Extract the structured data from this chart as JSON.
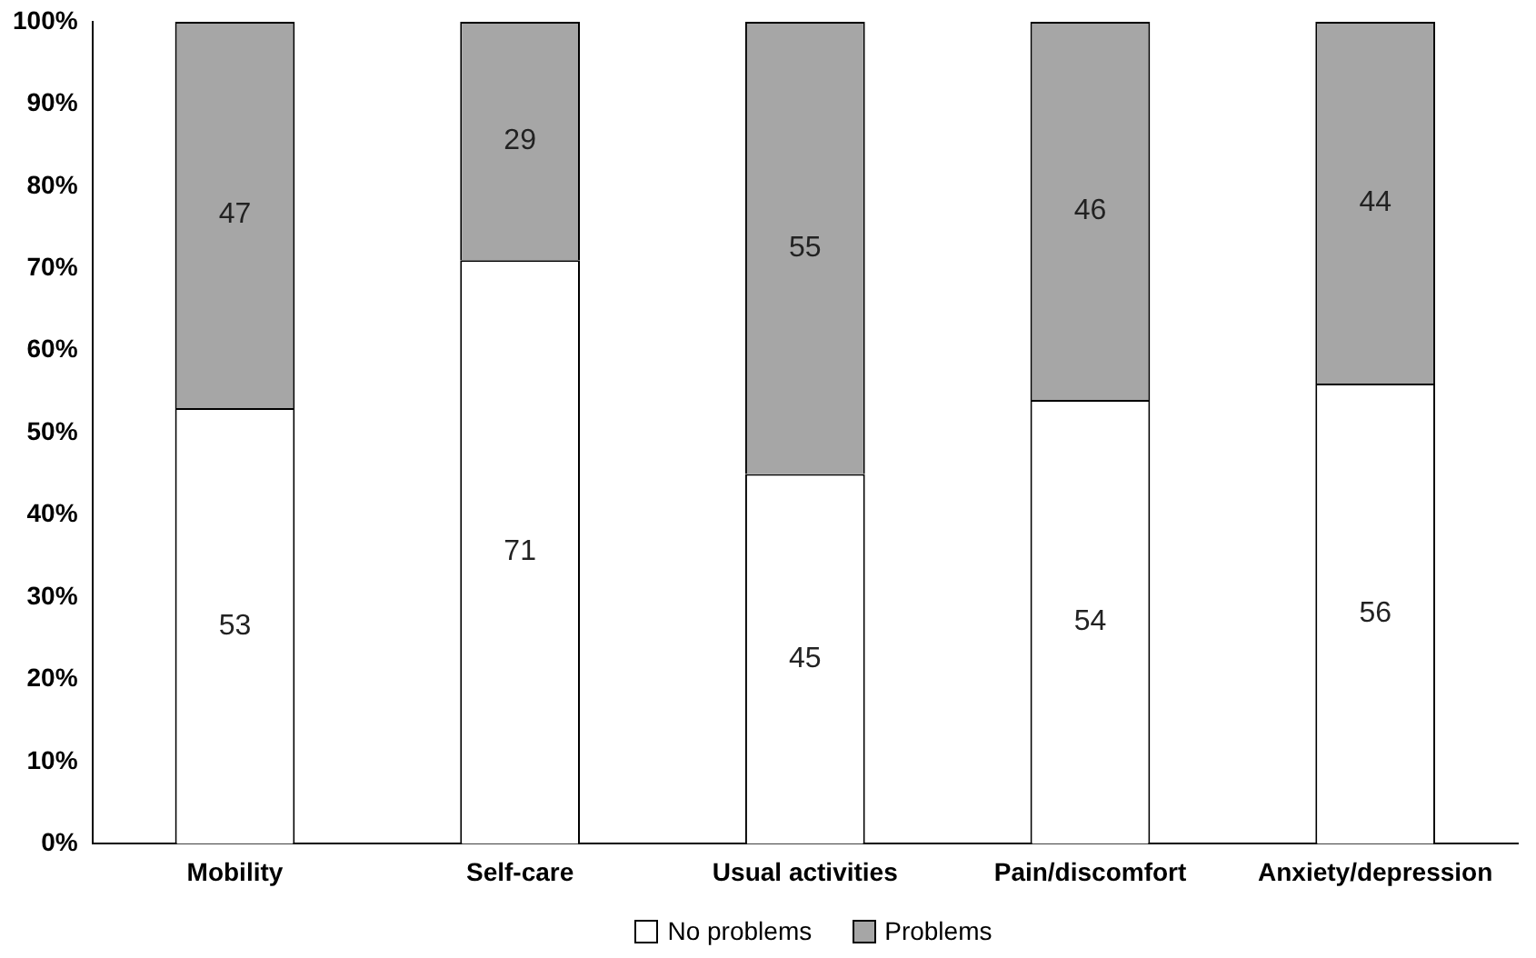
{
  "chart_data": {
    "type": "bar",
    "stacked": true,
    "categories": [
      "Mobility",
      "Self-care",
      "Usual activities",
      "Pain/discomfort",
      "Anxiety/depression"
    ],
    "series": [
      {
        "name": "No problems",
        "color": "#ffffff",
        "values": [
          53,
          71,
          45,
          54,
          56
        ]
      },
      {
        "name": "Problems",
        "color": "#a6a6a6",
        "values": [
          47,
          29,
          55,
          46,
          44
        ]
      }
    ],
    "ylim": [
      0,
      100
    ],
    "yticks": [
      {
        "value": 0,
        "label": "0%"
      },
      {
        "value": 10,
        "label": "10%"
      },
      {
        "value": 20,
        "label": "20%"
      },
      {
        "value": 30,
        "label": "30%"
      },
      {
        "value": 40,
        "label": "40%"
      },
      {
        "value": 50,
        "label": "50%"
      },
      {
        "value": 60,
        "label": "60%"
      },
      {
        "value": 70,
        "label": "70%"
      },
      {
        "value": 80,
        "label": "80%"
      },
      {
        "value": 90,
        "label": "90%"
      },
      {
        "value": 100,
        "label": "100%"
      }
    ],
    "data_labels": true,
    "grid": false,
    "legend": "bottom"
  }
}
